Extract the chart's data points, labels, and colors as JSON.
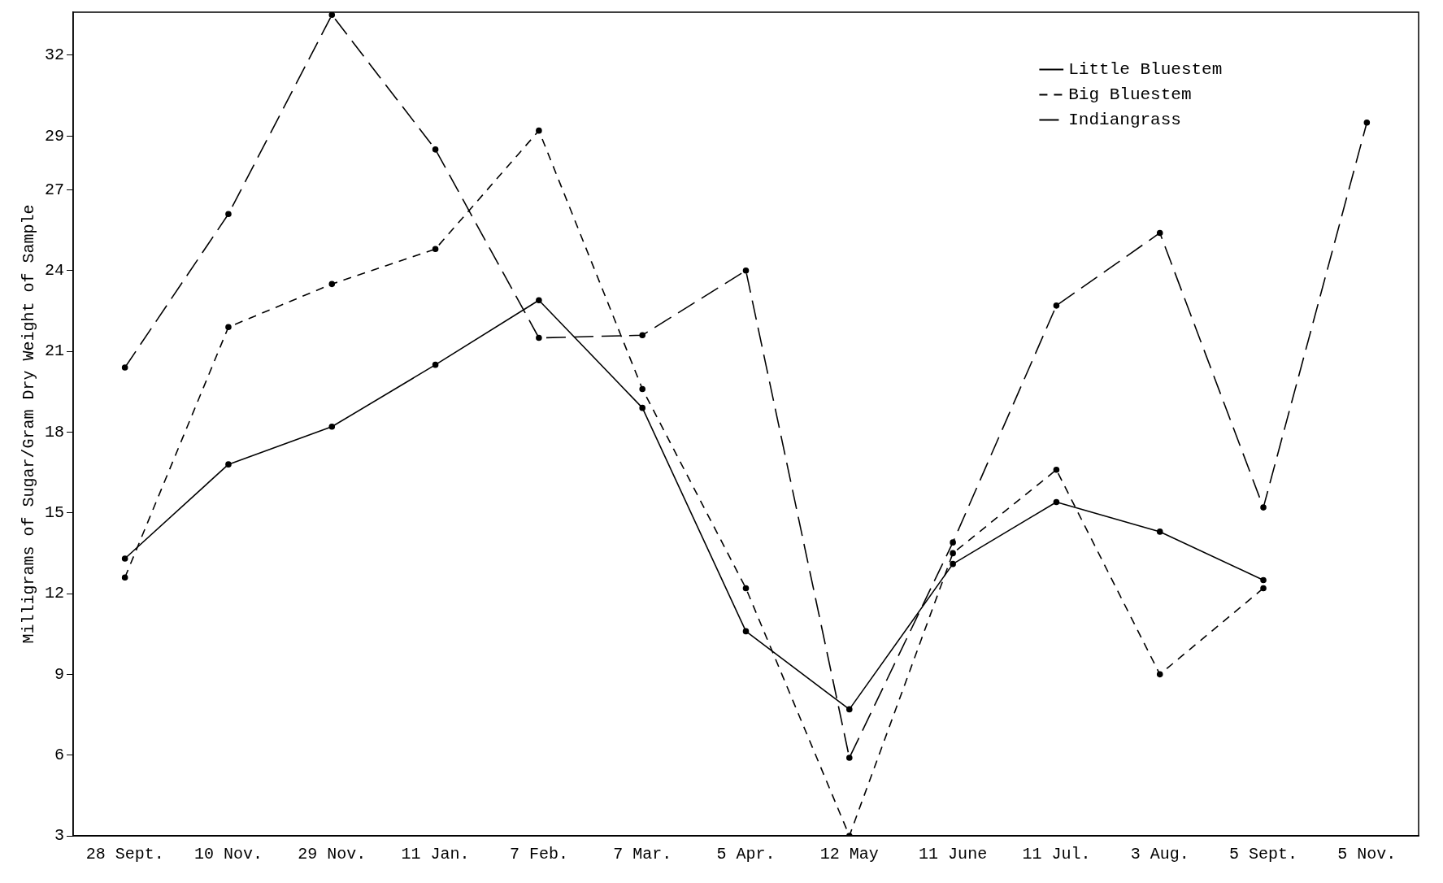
{
  "chart_data": {
    "type": "line",
    "ylabel": "Milligrams of Sugar/Gram Dry Weight of Sample",
    "categories": [
      "28 Sept.",
      "10 Nov.",
      "29 Nov.",
      "11 Jan.",
      "7 Feb.",
      "7 Mar.",
      "5 Apr.",
      "12 May",
      "11 June",
      "11 Jul.",
      "3 Aug.",
      "5 Sept.",
      "5 Nov."
    ],
    "series": [
      {
        "name": "Little Bluestem",
        "color": "#000000",
        "line_style": "solid",
        "values": [
          13.3,
          16.8,
          18.2,
          20.5,
          22.9,
          18.9,
          10.6,
          7.7,
          13.1,
          15.4,
          14.3,
          12.5,
          null
        ]
      },
      {
        "name": "Big Bluestem",
        "color": "#000000",
        "line_style": "dashed",
        "values": [
          12.6,
          21.9,
          23.5,
          24.8,
          29.2,
          19.6,
          12.2,
          3.0,
          13.5,
          16.6,
          9.0,
          12.2,
          null
        ]
      },
      {
        "name": "Indiangrass",
        "color": "#000000",
        "line_style": "dashed",
        "values": [
          20.4,
          26.1,
          33.5,
          28.5,
          21.5,
          21.6,
          24.0,
          5.9,
          13.9,
          22.7,
          25.4,
          15.2,
          29.5
        ]
      }
    ],
    "ylim": [
      3,
      33.6
    ],
    "yticks": [
      3,
      6,
      9,
      12,
      15,
      18,
      21,
      24,
      27,
      29,
      32
    ],
    "grid": false,
    "legend": "top right",
    "marker": "circle"
  }
}
